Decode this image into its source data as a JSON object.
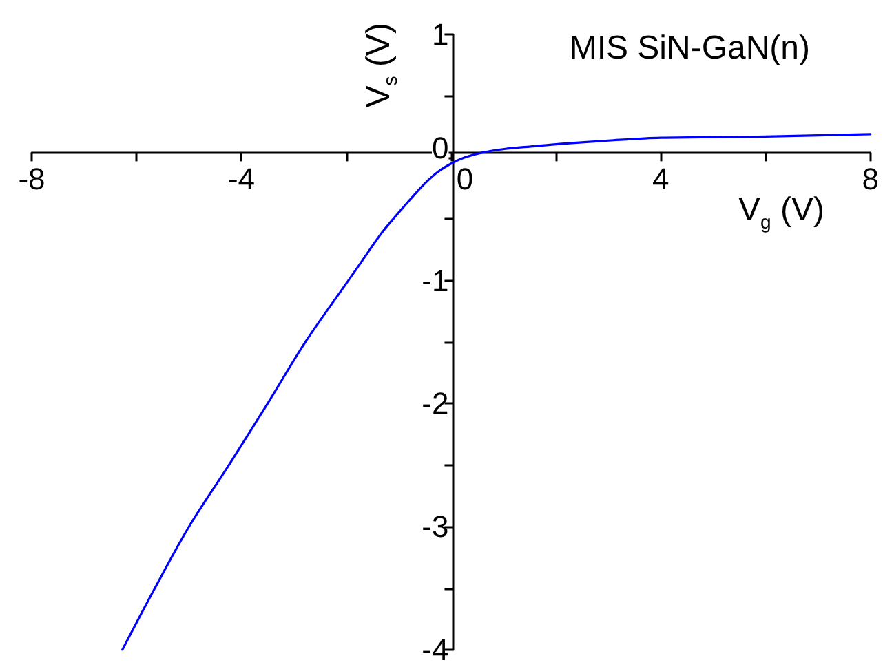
{
  "chart_data": {
    "type": "line",
    "title": "MIS SiN-GaN(n)",
    "xlabel": "V$_{g}$ (V)",
    "ylabel": "V$_{s}$ (V)",
    "x": [
      -6.27,
      -5.65,
      -5.0,
      -4.24,
      -3.5,
      -2.78,
      -1.96,
      -1.73,
      -1.3,
      -0.86,
      -0.52,
      -0.26,
      0,
      0.26,
      0.6,
      1.04,
      1.55,
      2.07,
      3.1,
      4,
      6,
      8
    ],
    "series": [
      {
        "color": "#0000ff",
        "values": [
          -4,
          -3.5,
          -3,
          -2.5,
          -2,
          -1.5,
          -1,
          -0.86,
          -0.6,
          -0.38,
          -0.22,
          -0.12,
          -0.05,
          0,
          0.04,
          0.07,
          0.09,
          0.11,
          0.14,
          0.16,
          0.17,
          0.19
        ]
      }
    ],
    "xlim": [
      -8,
      8
    ],
    "xticks": [
      -8,
      {
        "value": -6,
        "label": null
      },
      -4,
      {
        "value": -2,
        "label": null
      },
      0,
      {
        "value": 2,
        "label": null
      },
      4,
      {
        "value": 6,
        "label": null
      },
      8
    ],
    "ylim": [
      -4,
      1
    ],
    "yticks": [
      -4,
      {
        "value": -3.5,
        "label": null
      },
      -3,
      {
        "value": -2.5,
        "label": null
      },
      -2,
      {
        "value": -1.5,
        "label": null
      },
      -1,
      {
        "value": -0.5,
        "label": null
      },
      0,
      {
        "value": 0.5,
        "label": null
      },
      1
    ],
    "marker": "none",
    "line_style": "solid"
  }
}
